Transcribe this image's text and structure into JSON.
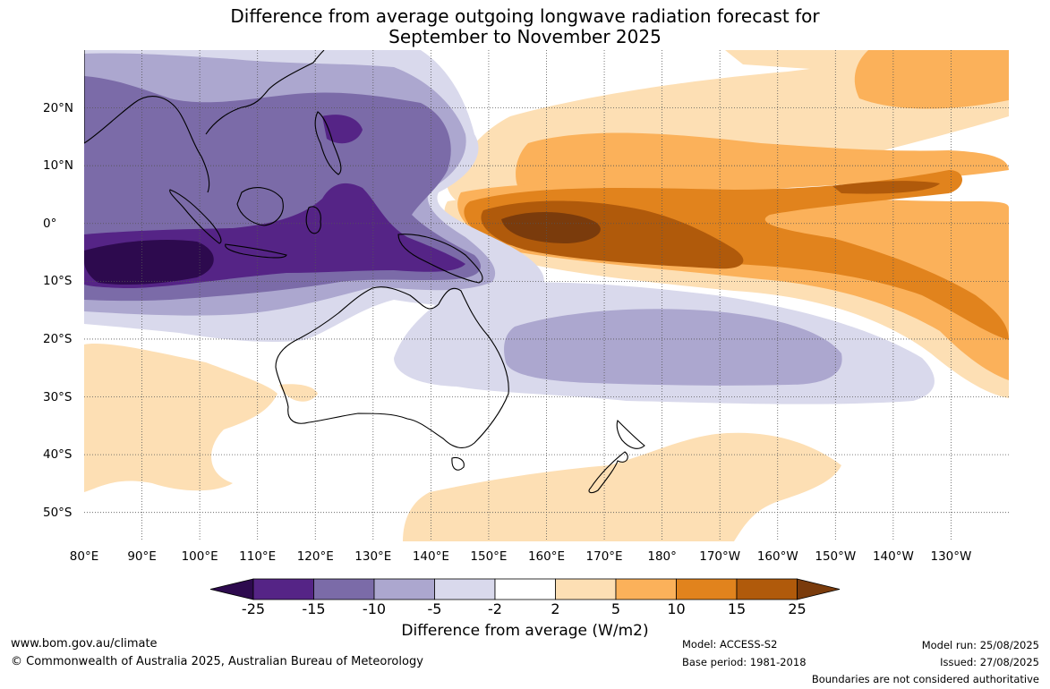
{
  "title": {
    "line1": "Difference from average outgoing longwave radiation forecast for",
    "line2": "September to November 2025"
  },
  "map": {
    "extent": {
      "lon_min": 80,
      "lon_max": 240,
      "lat_min": -55,
      "lat_max": 30
    },
    "lon_labels": [
      {
        "lon": 80,
        "text": "80°E"
      },
      {
        "lon": 90,
        "text": "90°E"
      },
      {
        "lon": 100,
        "text": "100°E"
      },
      {
        "lon": 110,
        "text": "110°E"
      },
      {
        "lon": 120,
        "text": "120°E"
      },
      {
        "lon": 130,
        "text": "130°E"
      },
      {
        "lon": 140,
        "text": "140°E"
      },
      {
        "lon": 150,
        "text": "150°E"
      },
      {
        "lon": 160,
        "text": "160°E"
      },
      {
        "lon": 170,
        "text": "170°E"
      },
      {
        "lon": 180,
        "text": "180°"
      },
      {
        "lon": 190,
        "text": "170°W"
      },
      {
        "lon": 200,
        "text": "160°W"
      },
      {
        "lon": 210,
        "text": "150°W"
      },
      {
        "lon": 220,
        "text": "140°W"
      },
      {
        "lon": 230,
        "text": "130°W"
      }
    ],
    "lat_labels": [
      {
        "lat": 20,
        "text": "20°N"
      },
      {
        "lat": 10,
        "text": "10°N"
      },
      {
        "lat": 0,
        "text": "0°"
      },
      {
        "lat": -10,
        "text": "10°S"
      },
      {
        "lat": -20,
        "text": "20°S"
      },
      {
        "lat": -30,
        "text": "30°S"
      },
      {
        "lat": -40,
        "text": "40°S"
      },
      {
        "lat": -50,
        "text": "50°S"
      }
    ]
  },
  "colors": {
    "neg25": "#2d0a4e",
    "neg15": "#552486",
    "neg10": "#7b6ba8",
    "neg5": "#aca7cf",
    "neg2": "#d9d9ec",
    "zero": "#ffffff",
    "pos2": "#fddfb4",
    "pos5": "#fbb15a",
    "pos10": "#e1831d",
    "pos15": "#b05a0b",
    "pos25": "#7a3b0c"
  },
  "colorbar": {
    "ticks": [
      "-25",
      "-15",
      "-10",
      "-5",
      "-2",
      "2",
      "5",
      "10",
      "15",
      "25"
    ],
    "label": "Difference from average (W/m2)"
  },
  "footer": {
    "website": "www.bom.gov.au/climate",
    "copyright": "© Commonwealth of Australia 2025, Australian Bureau of Meteorology",
    "model": "Model: ACCESS-S2",
    "base_period": "Base period: 1981-2018",
    "model_run": "Model run: 25/08/2025",
    "issued": "Issued: 27/08/2025",
    "disclaimer": "Boundaries are not considered authoritative"
  }
}
